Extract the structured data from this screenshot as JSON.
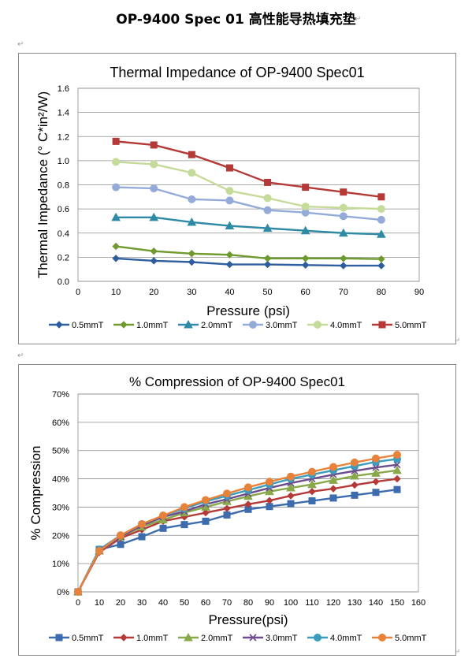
{
  "document": {
    "title": "OP-9400 Spec 01  高性能导热填充垫",
    "paragraph_mark": "↵"
  },
  "chart_data": [
    {
      "type": "line",
      "title": "Thermal Impedance of OP-9400 Spec01",
      "xlabel": "Pressure (psi)",
      "ylabel": "Thermal Impedance (° C*in²/W)",
      "xlim": [
        0,
        90
      ],
      "ylim": [
        0,
        1.6
      ],
      "xticks": [
        0,
        10,
        20,
        30,
        40,
        50,
        60,
        70,
        80,
        90
      ],
      "yticks": [
        0.0,
        0.2,
        0.4,
        0.6,
        0.8,
        1.0,
        1.2,
        1.4,
        1.6
      ],
      "ytick_decimals": 1,
      "ytick_suffix": "",
      "grid": true,
      "legend_position": "bottom",
      "x": [
        10,
        20,
        30,
        40,
        50,
        60,
        70,
        80
      ],
      "series": [
        {
          "name": "0.5mmT",
          "color": "#2E5E9E",
          "marker": "diamond",
          "values": [
            0.19,
            0.17,
            0.16,
            0.14,
            0.14,
            0.135,
            0.13,
            0.13
          ]
        },
        {
          "name": "1.0mmT",
          "color": "#6E9A2E",
          "marker": "diamond",
          "values": [
            0.29,
            0.25,
            0.23,
            0.22,
            0.19,
            0.19,
            0.19,
            0.185
          ]
        },
        {
          "name": "2.0mmT",
          "color": "#2F8BA5",
          "marker": "triangle",
          "values": [
            0.53,
            0.53,
            0.49,
            0.46,
            0.44,
            0.42,
            0.4,
            0.39
          ]
        },
        {
          "name": "3.0mmT",
          "color": "#94ABDA",
          "marker": "circle",
          "values": [
            0.78,
            0.77,
            0.68,
            0.67,
            0.59,
            0.57,
            0.54,
            0.51
          ]
        },
        {
          "name": "4.0mmT",
          "color": "#C5DB99",
          "marker": "circle",
          "values": [
            0.99,
            0.97,
            0.9,
            0.75,
            0.69,
            0.62,
            0.61,
            0.6
          ]
        },
        {
          "name": "5.0mmT",
          "color": "#B53A37",
          "marker": "square",
          "values": [
            1.16,
            1.13,
            1.05,
            0.94,
            0.82,
            0.78,
            0.74,
            0.7
          ]
        }
      ]
    },
    {
      "type": "line",
      "title": "% Compression of OP-9400 Spec01",
      "xlabel": "Pressure(psi)",
      "ylabel": "% Compression",
      "xlim": [
        0,
        160
      ],
      "ylim": [
        0,
        70
      ],
      "xticks": [
        0,
        10,
        20,
        30,
        40,
        50,
        60,
        70,
        80,
        90,
        100,
        110,
        120,
        130,
        140,
        150,
        160
      ],
      "yticks": [
        0,
        10,
        20,
        30,
        40,
        50,
        60,
        70
      ],
      "ytick_decimals": 0,
      "ytick_suffix": "%",
      "grid": true,
      "legend_position": "bottom",
      "x": [
        0,
        10,
        20,
        30,
        40,
        50,
        60,
        70,
        80,
        90,
        100,
        110,
        120,
        130,
        140,
        150
      ],
      "series": [
        {
          "name": "0.5mmT",
          "color": "#3C6BAE",
          "marker": "square",
          "values": [
            0,
            15,
            16.8,
            19.5,
            22.5,
            23.8,
            25,
            27.2,
            29.2,
            30.2,
            31.2,
            32.2,
            33.2,
            34.2,
            35.2,
            36.2
          ]
        },
        {
          "name": "1.0mmT",
          "color": "#B53A37",
          "marker": "diamond",
          "values": [
            0,
            14,
            19,
            22,
            25,
            26.5,
            28,
            29.5,
            31,
            32.3,
            34,
            35.5,
            36.5,
            37.8,
            39,
            40
          ]
        },
        {
          "name": "2.0mmT",
          "color": "#88A849",
          "marker": "triangle",
          "values": [
            0,
            14.5,
            19.5,
            23,
            25.5,
            28,
            30,
            32,
            33.8,
            35.5,
            36.8,
            38,
            39.5,
            41,
            42,
            43
          ]
        },
        {
          "name": "3.0mmT",
          "color": "#6C4C8F",
          "marker": "x",
          "values": [
            0,
            14.5,
            19.5,
            23.5,
            26.5,
            28.5,
            31,
            32.8,
            34.8,
            36.8,
            38.5,
            40,
            41.5,
            42.8,
            44,
            45
          ]
        },
        {
          "name": "4.0mmT",
          "color": "#3B9CBE",
          "marker": "circle",
          "values": [
            0,
            15,
            20,
            24,
            27,
            29.5,
            32,
            34,
            36,
            38,
            40,
            41.5,
            43,
            44.5,
            46,
            47
          ]
        },
        {
          "name": "5.0mmT",
          "color": "#E8823A",
          "marker": "circle",
          "values": [
            0,
            14.5,
            20,
            24,
            27,
            30,
            32.5,
            34.8,
            37,
            39,
            40.8,
            42.5,
            44.2,
            45.8,
            47.2,
            48.5
          ]
        }
      ]
    }
  ]
}
